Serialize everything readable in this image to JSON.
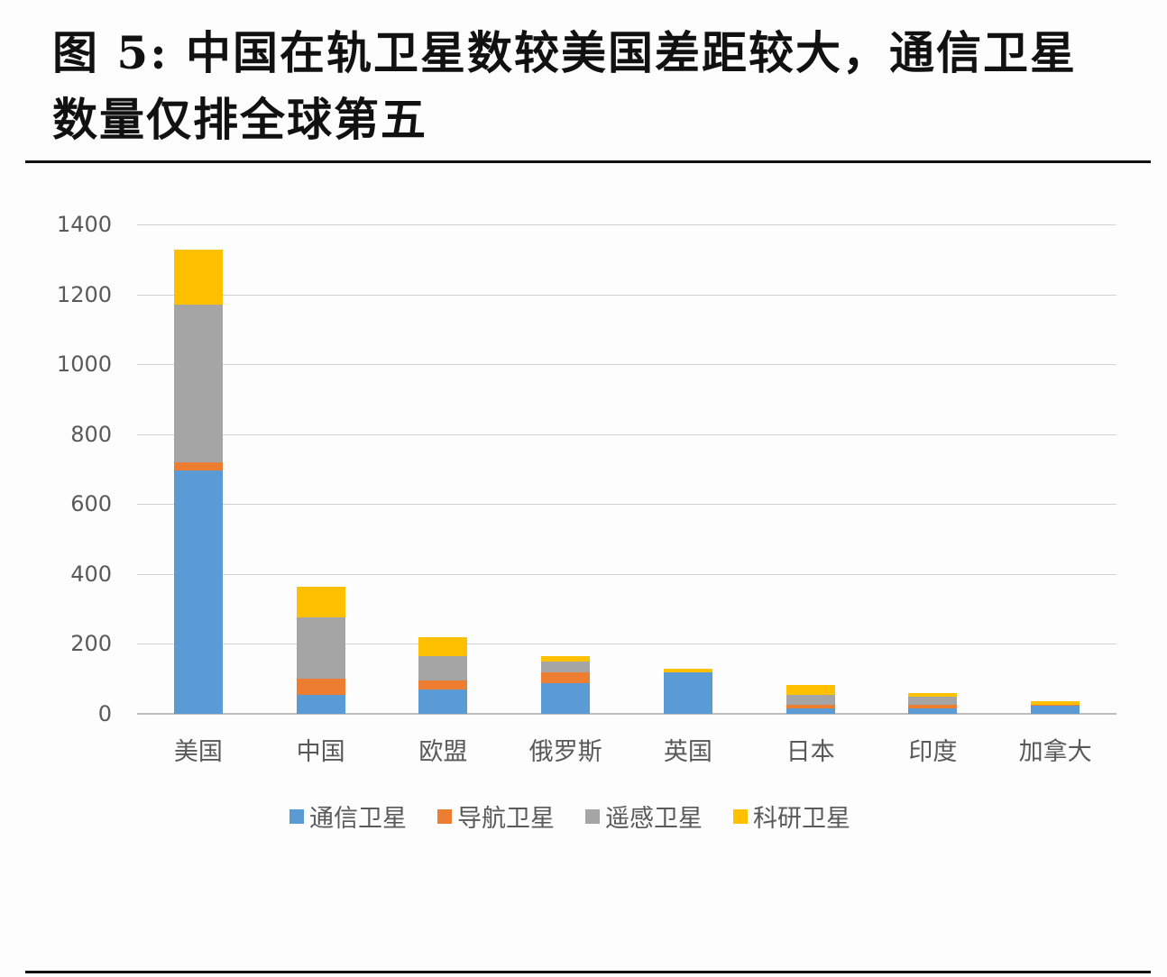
{
  "title": "图  5: 中国在轨卫星数较美国差距较大，通信卫星数量仅排全球第五",
  "title_line1": "图  5: 中国在轨卫星数较美国差距较大，通信卫星",
  "title_line2": "数量仅排全球第五",
  "chart_data": {
    "type": "bar",
    "stacked": true,
    "title": "图  5: 中国在轨卫星数较美国差距较大，通信卫星数量仅排全球第五",
    "xlabel": "",
    "ylabel": "",
    "ylim": [
      0,
      1400
    ],
    "yticks": [
      0,
      200,
      400,
      600,
      800,
      1000,
      1200,
      1400
    ],
    "grid": true,
    "legend_position": "bottom",
    "categories": [
      "美国",
      "中国",
      "欧盟",
      "俄罗斯",
      "英国",
      "日本",
      "印度",
      "加拿大"
    ],
    "series": [
      {
        "name": "通信卫星",
        "color": "#5B9BD5",
        "values": [
          695,
          55,
          70,
          88,
          118,
          15,
          15,
          22
        ]
      },
      {
        "name": "导航卫星",
        "color": "#ED7D31",
        "values": [
          25,
          45,
          25,
          30,
          0,
          10,
          10,
          3
        ]
      },
      {
        "name": "遥感卫星",
        "color": "#A5A5A5",
        "values": [
          450,
          175,
          70,
          32,
          0,
          30,
          25,
          2
        ]
      },
      {
        "name": "科研卫星",
        "color": "#FFC000",
        "values": [
          158,
          88,
          53,
          15,
          10,
          27,
          10,
          10
        ]
      }
    ]
  }
}
